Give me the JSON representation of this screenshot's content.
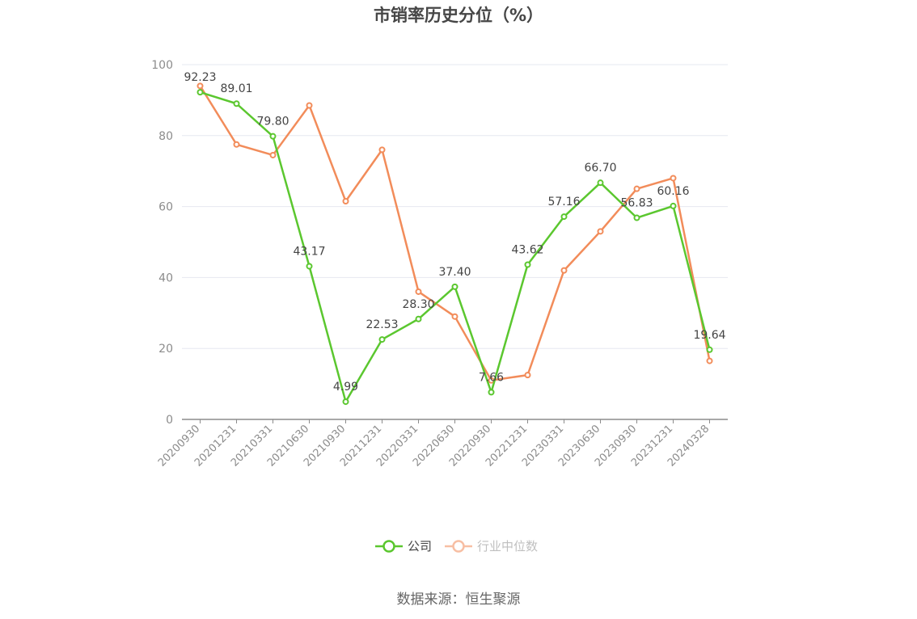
{
  "chart_data": {
    "type": "line",
    "title": "市销率历史分位（%）",
    "categories": [
      "20200930",
      "20201231",
      "20210331",
      "20210630",
      "20210930",
      "20211231",
      "20220331",
      "20220630",
      "20220930",
      "20221231",
      "20230331",
      "20230630",
      "20230930",
      "20231231",
      "20240328"
    ],
    "series": [
      {
        "name": "公司",
        "color": "#5bc72f",
        "values": [
          92.23,
          89.01,
          79.8,
          43.17,
          4.99,
          22.53,
          28.3,
          37.4,
          7.66,
          43.62,
          57.16,
          66.7,
          56.83,
          60.16,
          19.64
        ],
        "labels": [
          "92.23",
          "89.01",
          "79.80",
          "43.17",
          "4.99",
          "22.53",
          "28.30",
          "37.40",
          "7.66",
          "43.62",
          "57.16",
          "66.70",
          "56.83",
          "60.16",
          "19.64"
        ]
      },
      {
        "name": "行业中位数",
        "color": "#f28c5a",
        "values": [
          94,
          77.5,
          74.5,
          88.5,
          61.5,
          76,
          36,
          29,
          11,
          12.5,
          42,
          53,
          65,
          68,
          16.5
        ]
      }
    ],
    "ylim": [
      0,
      100
    ],
    "yticks": [
      0,
      20,
      40,
      60,
      80,
      100
    ],
    "grid": true,
    "legend_position": "bottom-center"
  },
  "source_text": "数据来源：恒生聚源"
}
